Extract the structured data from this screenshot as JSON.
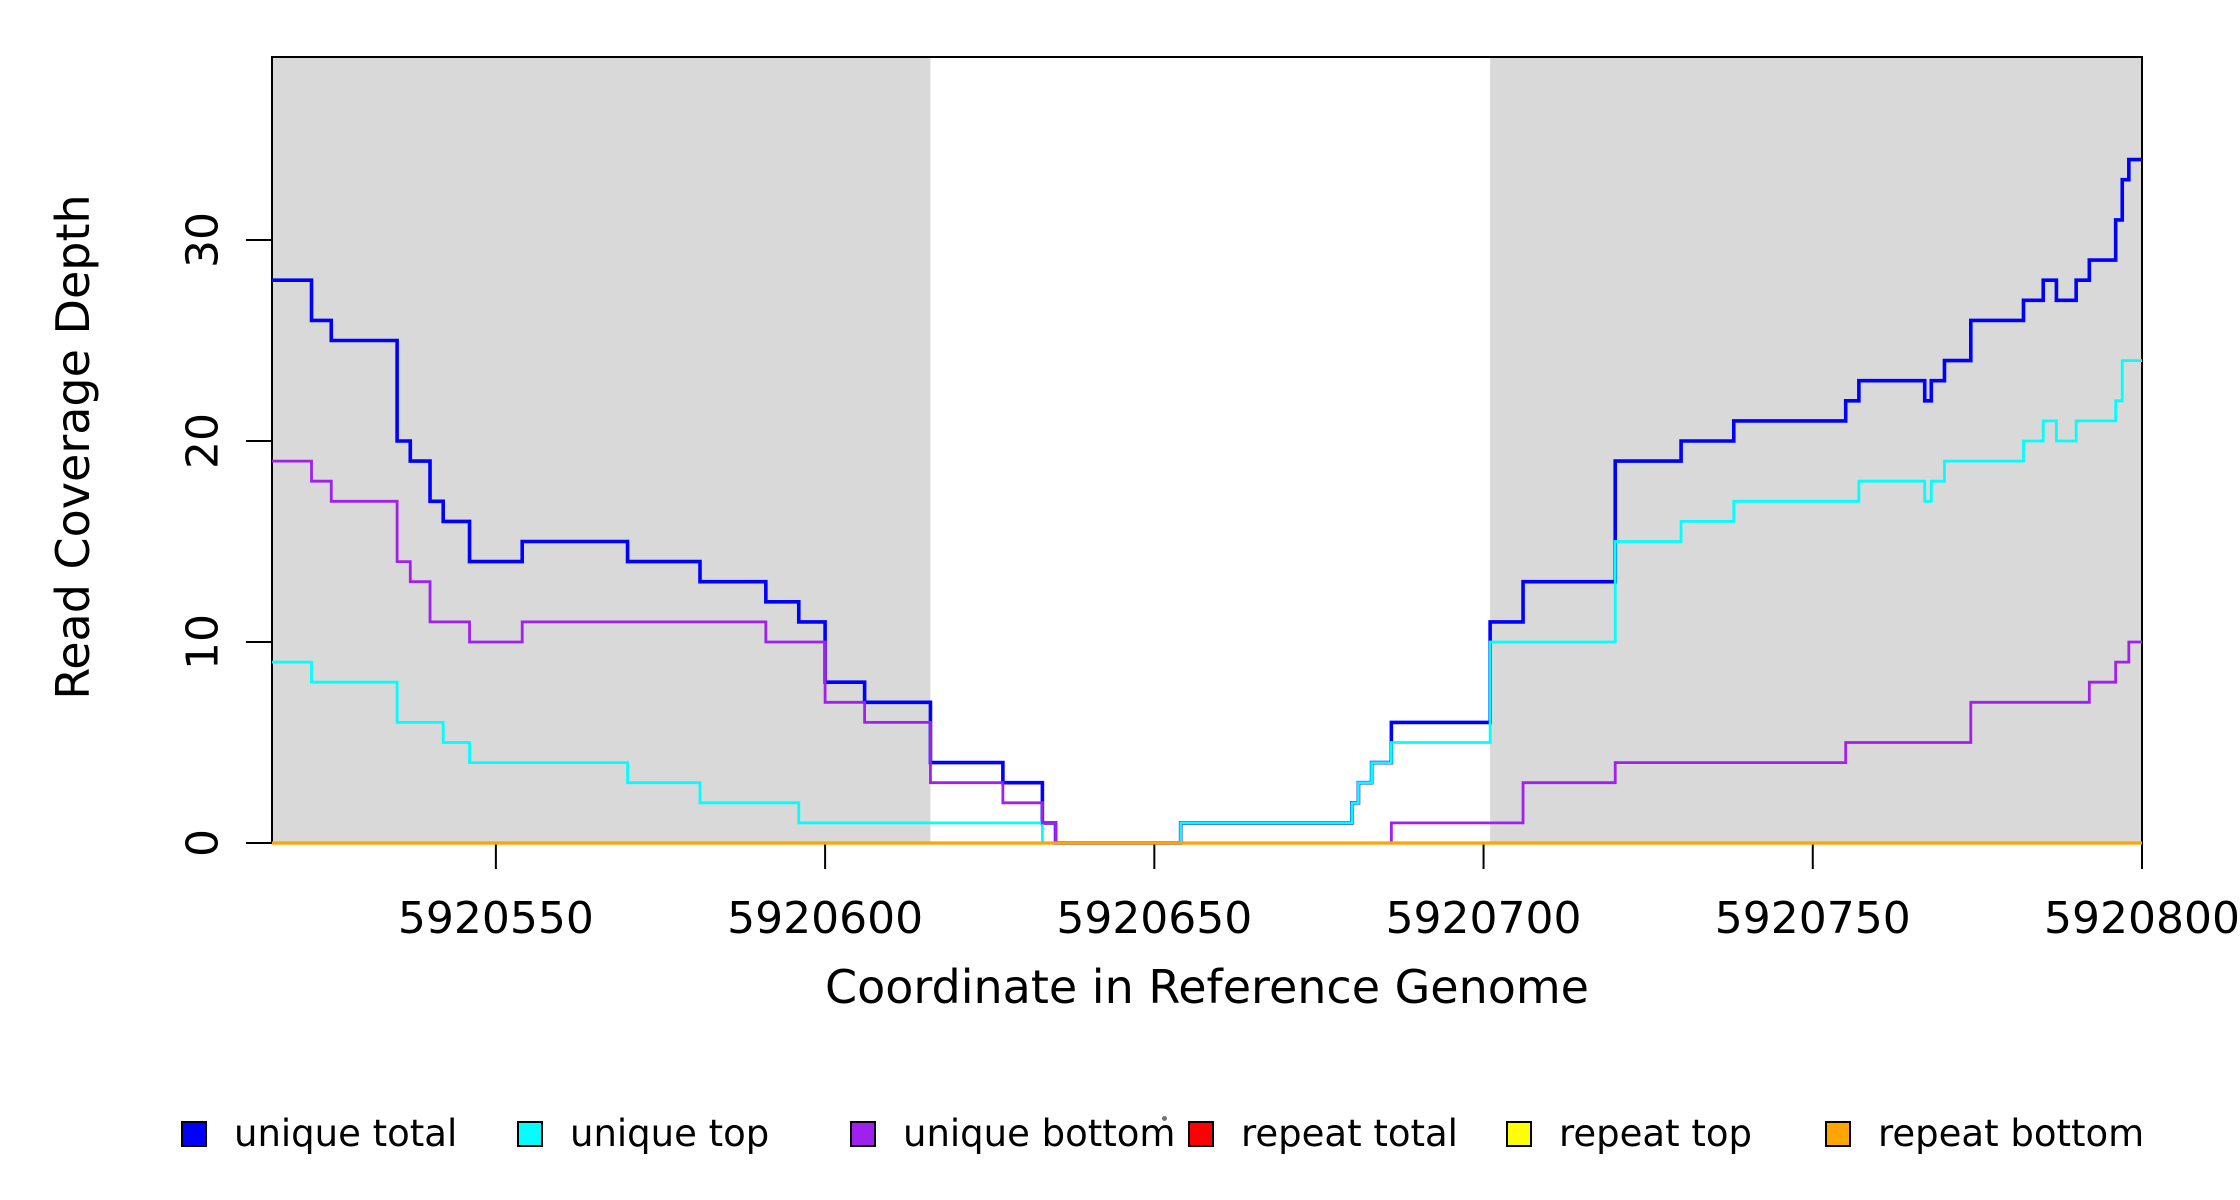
{
  "figure": {
    "background": "#FFFFFF",
    "axis_color": "#000000",
    "shaded_region_color": "#D9D9D9"
  },
  "chart_data": {
    "type": "line",
    "subtype": "step",
    "title": "",
    "xlabel": "Coordinate in Reference Genome",
    "ylabel": "Read Coverage Depth",
    "xlim": [
      5920516,
      5920800
    ],
    "ylim": [
      0,
      39
    ],
    "x_ticks": [
      5920550,
      5920600,
      5920650,
      5920700,
      5920750,
      5920800
    ],
    "y_ticks": [
      0,
      10,
      20,
      30
    ],
    "grid": false,
    "legend_position": "bottom",
    "shaded_regions": [
      {
        "x0": 5920516,
        "x1": 5920616,
        "color": "#D9D9D9"
      },
      {
        "x0": 5920701,
        "x1": 5920800,
        "color": "#D9D9D9"
      }
    ],
    "series": [
      {
        "name": "unique total",
        "color": "#0000FF",
        "width": 3.6,
        "points": [
          [
            5920516,
            28
          ],
          [
            5920522,
            26
          ],
          [
            5920525,
            25
          ],
          [
            5920535,
            20
          ],
          [
            5920537,
            19
          ],
          [
            5920540,
            17
          ],
          [
            5920542,
            16
          ],
          [
            5920546,
            14
          ],
          [
            5920554,
            15
          ],
          [
            5920570,
            14
          ],
          [
            5920581,
            13
          ],
          [
            5920591,
            12
          ],
          [
            5920596,
            11
          ],
          [
            5920600,
            8
          ],
          [
            5920606,
            7
          ],
          [
            5920616,
            4
          ],
          [
            5920627,
            3
          ],
          [
            5920633,
            1
          ],
          [
            5920635,
            0
          ],
          [
            5920654,
            1
          ],
          [
            5920680,
            2
          ],
          [
            5920681,
            3
          ],
          [
            5920683,
            4
          ],
          [
            5920686,
            6
          ],
          [
            5920701,
            11
          ],
          [
            5920706,
            13
          ],
          [
            5920720,
            19
          ],
          [
            5920730,
            20
          ],
          [
            5920738,
            21
          ],
          [
            5920755,
            22
          ],
          [
            5920757,
            23
          ],
          [
            5920767,
            22
          ],
          [
            5920768,
            23
          ],
          [
            5920770,
            24
          ],
          [
            5920774,
            26
          ],
          [
            5920782,
            27
          ],
          [
            5920785,
            28
          ],
          [
            5920787,
            27
          ],
          [
            5920790,
            28
          ],
          [
            5920792,
            29
          ],
          [
            5920796,
            31
          ],
          [
            5920797,
            33
          ],
          [
            5920798,
            34
          ],
          [
            5920800,
            34
          ]
        ]
      },
      {
        "name": "unique top",
        "color": "#00FFFF",
        "width": 2.8,
        "points": [
          [
            5920516,
            9
          ],
          [
            5920522,
            8
          ],
          [
            5920535,
            6
          ],
          [
            5920542,
            5
          ],
          [
            5920546,
            4
          ],
          [
            5920570,
            3
          ],
          [
            5920581,
            2
          ],
          [
            5920596,
            1
          ],
          [
            5920633,
            0
          ],
          [
            5920654,
            1
          ],
          [
            5920680,
            2
          ],
          [
            5920681,
            3
          ],
          [
            5920683,
            4
          ],
          [
            5920686,
            5
          ],
          [
            5920701,
            10
          ],
          [
            5920720,
            15
          ],
          [
            5920730,
            16
          ],
          [
            5920738,
            17
          ],
          [
            5920757,
            18
          ],
          [
            5920767,
            17
          ],
          [
            5920768,
            18
          ],
          [
            5920770,
            19
          ],
          [
            5920782,
            20
          ],
          [
            5920785,
            21
          ],
          [
            5920787,
            20
          ],
          [
            5920790,
            21
          ],
          [
            5920796,
            22
          ],
          [
            5920797,
            24
          ],
          [
            5920800,
            24
          ]
        ]
      },
      {
        "name": "unique bottom",
        "color": "#A020F0",
        "width": 2.8,
        "points": [
          [
            5920516,
            19
          ],
          [
            5920522,
            18
          ],
          [
            5920525,
            17
          ],
          [
            5920535,
            14
          ],
          [
            5920537,
            13
          ],
          [
            5920540,
            11
          ],
          [
            5920546,
            10
          ],
          [
            5920554,
            11
          ],
          [
            5920591,
            10
          ],
          [
            5920600,
            7
          ],
          [
            5920606,
            6
          ],
          [
            5920616,
            3
          ],
          [
            5920627,
            2
          ],
          [
            5920633,
            1
          ],
          [
            5920635,
            0
          ],
          [
            5920686,
            1
          ],
          [
            5920706,
            3
          ],
          [
            5920720,
            4
          ],
          [
            5920755,
            5
          ],
          [
            5920774,
            7
          ],
          [
            5920792,
            8
          ],
          [
            5920796,
            9
          ],
          [
            5920798,
            10
          ],
          [
            5920800,
            10
          ]
        ]
      },
      {
        "name": "repeat total",
        "color": "#FF0000",
        "width": 2.8,
        "points": [
          [
            5920516,
            0
          ],
          [
            5920800,
            0
          ]
        ]
      },
      {
        "name": "repeat top",
        "color": "#FFFF00",
        "width": 2.8,
        "points": [
          [
            5920516,
            0
          ],
          [
            5920800,
            0
          ]
        ]
      },
      {
        "name": "repeat bottom",
        "color": "#FFA500",
        "width": 3.2,
        "points": [
          [
            5920516,
            0
          ],
          [
            5920800,
            0
          ]
        ]
      }
    ]
  },
  "legend": {
    "items": [
      {
        "label": "unique total",
        "color": "#0000FF"
      },
      {
        "label": "unique top",
        "color": "#00FFFF"
      },
      {
        "label": "unique bottom",
        "color": "#A020F0"
      },
      {
        "label": "repeat total",
        "color": "#FF0000"
      },
      {
        "label": "repeat top",
        "color": "#FFFF00"
      },
      {
        "label": "repeat bottom",
        "color": "#FFA500"
      }
    ],
    "stray_dot": true
  }
}
